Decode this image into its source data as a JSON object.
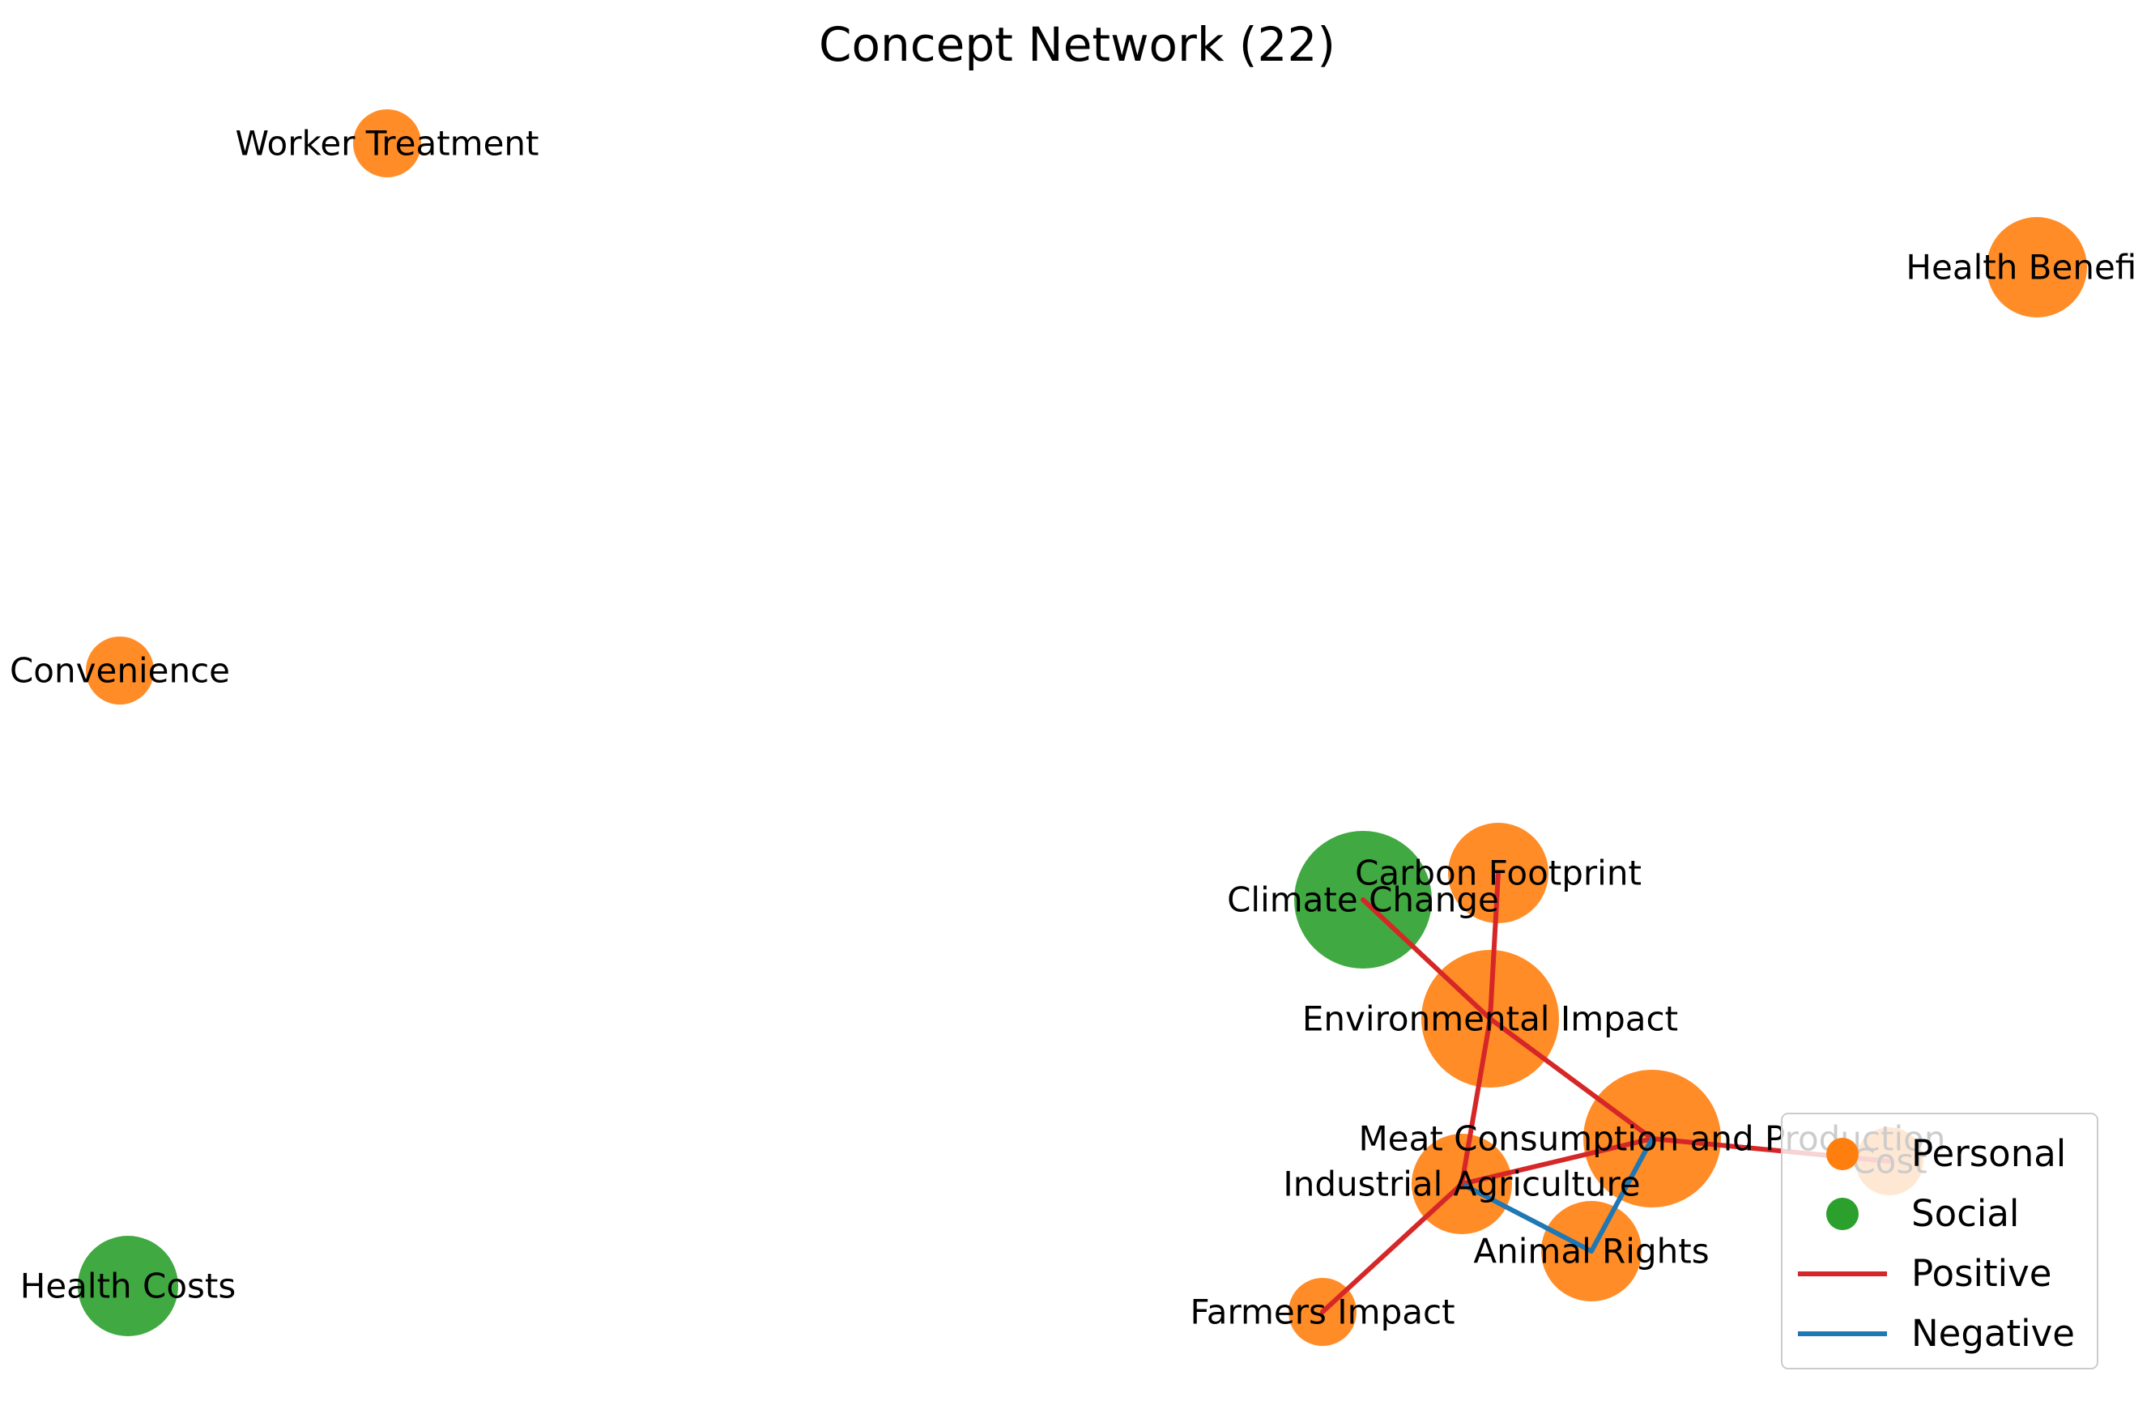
{
  "title": "Concept Network (22)",
  "colors": {
    "personal": "#ff7f0e",
    "social": "#2ca02c",
    "positive": "#d62728",
    "negative": "#1f77b4",
    "legend_border": "#cccccc"
  },
  "legend": {
    "items": [
      {
        "label": "Personal",
        "kind": "node",
        "category": "personal"
      },
      {
        "label": "Social",
        "kind": "node",
        "category": "social"
      },
      {
        "label": "Positive",
        "kind": "edge",
        "polarity": "positive"
      },
      {
        "label": "Negative",
        "kind": "edge",
        "polarity": "negative"
      }
    ]
  },
  "nodes": [
    {
      "id": "worker-treatment",
      "label": "Worker Treatment",
      "category": "personal",
      "weight": 1
    },
    {
      "id": "health-benefits",
      "label": "Health Benefits",
      "category": "personal",
      "weight": 2
    },
    {
      "id": "convenience",
      "label": "Convenience",
      "category": "personal",
      "weight": 1
    },
    {
      "id": "health-costs",
      "label": "Health Costs",
      "category": "social",
      "weight": 2
    },
    {
      "id": "climate-change",
      "label": "Climate Change",
      "category": "social",
      "weight": 4
    },
    {
      "id": "carbon-footprint",
      "label": "Carbon Footprint",
      "category": "personal",
      "weight": 2
    },
    {
      "id": "environmental-impact",
      "label": "Environmental Impact",
      "category": "personal",
      "weight": 4
    },
    {
      "id": "meat-consumption",
      "label": "Meat Consumption and Production",
      "category": "personal",
      "weight": 4
    },
    {
      "id": "cost",
      "label": "Cost",
      "category": "personal",
      "weight": 1
    },
    {
      "id": "industrial-agriculture",
      "label": "Industrial Agriculture",
      "category": "personal",
      "weight": 2
    },
    {
      "id": "animal-rights",
      "label": "Animal Rights",
      "category": "personal",
      "weight": 2
    },
    {
      "id": "farmers-impact",
      "label": "Farmers Impact",
      "category": "personal",
      "weight": 1
    }
  ],
  "edges": [
    {
      "source": "climate-change",
      "target": "environmental-impact",
      "polarity": "positive"
    },
    {
      "source": "carbon-footprint",
      "target": "environmental-impact",
      "polarity": "positive"
    },
    {
      "source": "environmental-impact",
      "target": "meat-consumption",
      "polarity": "positive"
    },
    {
      "source": "environmental-impact",
      "target": "industrial-agriculture",
      "polarity": "positive"
    },
    {
      "source": "meat-consumption",
      "target": "cost",
      "polarity": "positive"
    },
    {
      "source": "meat-consumption",
      "target": "industrial-agriculture",
      "polarity": "positive"
    },
    {
      "source": "meat-consumption",
      "target": "animal-rights",
      "polarity": "negative"
    },
    {
      "source": "industrial-agriculture",
      "target": "animal-rights",
      "polarity": "negative"
    },
    {
      "source": "industrial-agriculture",
      "target": "farmers-impact",
      "polarity": "positive"
    }
  ]
}
